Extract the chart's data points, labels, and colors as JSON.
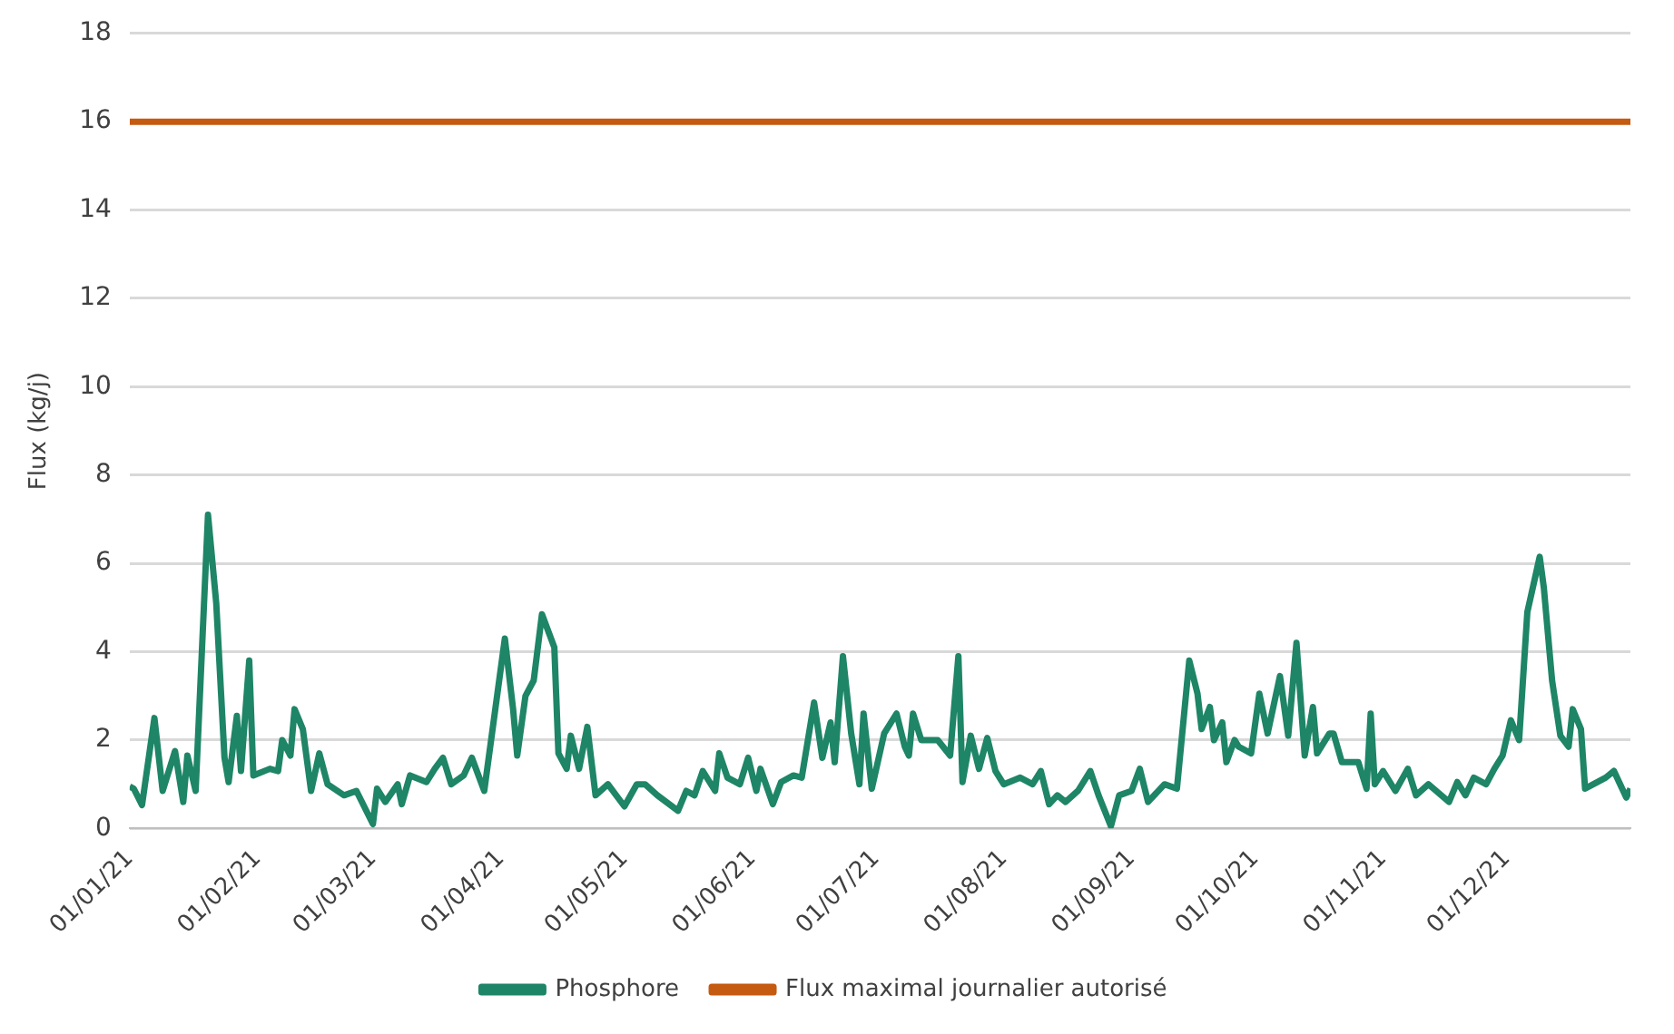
{
  "chart_data": {
    "type": "line",
    "ylabel": "Flux (kg/j)",
    "ylim": [
      0,
      18
    ],
    "yticks": [
      0,
      2,
      4,
      6,
      8,
      10,
      12,
      14,
      16,
      18
    ],
    "xlim": [
      "2021-01-01",
      "2021-12-31"
    ],
    "xticks": [
      {
        "value": "2021-01-01",
        "label": "01/01/21"
      },
      {
        "value": "2021-02-01",
        "label": "01/02/21"
      },
      {
        "value": "2021-03-01",
        "label": "01/03/21"
      },
      {
        "value": "2021-04-01",
        "label": "01/04/21"
      },
      {
        "value": "2021-05-01",
        "label": "01/05/21"
      },
      {
        "value": "2021-06-01",
        "label": "01/06/21"
      },
      {
        "value": "2021-07-01",
        "label": "01/07/21"
      },
      {
        "value": "2021-08-01",
        "label": "01/08/21"
      },
      {
        "value": "2021-09-01",
        "label": "01/09/21"
      },
      {
        "value": "2021-10-01",
        "label": "01/10/21"
      },
      {
        "value": "2021-11-01",
        "label": "01/11/21"
      },
      {
        "value": "2021-12-01",
        "label": "01/12/21"
      }
    ],
    "grid": "y",
    "legend": "bottom",
    "marker": "none",
    "line_style": "solid",
    "series": [
      {
        "name": "Phosphore",
        "color": "#1e8566",
        "x": [
          "2021-01-01",
          "2021-01-02",
          "2021-01-04",
          "2021-01-07",
          "2021-01-09",
          "2021-01-12",
          "2021-01-14",
          "2021-01-15",
          "2021-01-17",
          "2021-01-20",
          "2021-01-22",
          "2021-01-24",
          "2021-01-25",
          "2021-01-27",
          "2021-01-28",
          "2021-01-30",
          "2021-01-31",
          "2021-02-04",
          "2021-02-06",
          "2021-02-07",
          "2021-02-09",
          "2021-02-10",
          "2021-02-12",
          "2021-02-14",
          "2021-02-16",
          "2021-02-18",
          "2021-02-22",
          "2021-02-25",
          "2021-03-01",
          "2021-03-02",
          "2021-03-04",
          "2021-03-07",
          "2021-03-08",
          "2021-03-10",
          "2021-03-14",
          "2021-03-16",
          "2021-03-18",
          "2021-03-20",
          "2021-03-23",
          "2021-03-25",
          "2021-03-28",
          "2021-04-02",
          "2021-04-04",
          "2021-04-05",
          "2021-04-07",
          "2021-04-09",
          "2021-04-11",
          "2021-04-14",
          "2021-04-15",
          "2021-04-17",
          "2021-04-18",
          "2021-04-20",
          "2021-04-22",
          "2021-04-24",
          "2021-04-27",
          "2021-05-01",
          "2021-05-04",
          "2021-05-06",
          "2021-05-09",
          "2021-05-14",
          "2021-05-16",
          "2021-05-18",
          "2021-05-20",
          "2021-05-23",
          "2021-05-24",
          "2021-05-26",
          "2021-05-29",
          "2021-05-31",
          "2021-06-02",
          "2021-06-03",
          "2021-06-06",
          "2021-06-08",
          "2021-06-11",
          "2021-06-13",
          "2021-06-16",
          "2021-06-18",
          "2021-06-20",
          "2021-06-21",
          "2021-06-23",
          "2021-06-25",
          "2021-06-27",
          "2021-06-28",
          "2021-06-30",
          "2021-07-03",
          "2021-07-06",
          "2021-07-08",
          "2021-07-09",
          "2021-07-10",
          "2021-07-12",
          "2021-07-16",
          "2021-07-19",
          "2021-07-21",
          "2021-07-22",
          "2021-07-24",
          "2021-07-26",
          "2021-07-28",
          "2021-07-30",
          "2021-08-01",
          "2021-08-05",
          "2021-08-08",
          "2021-08-10",
          "2021-08-12",
          "2021-08-14",
          "2021-08-16",
          "2021-08-19",
          "2021-08-22",
          "2021-08-24",
          "2021-08-27",
          "2021-08-29",
          "2021-09-01",
          "2021-09-03",
          "2021-09-05",
          "2021-09-09",
          "2021-09-12",
          "2021-09-15",
          "2021-09-17",
          "2021-09-18",
          "2021-09-20",
          "2021-09-21",
          "2021-09-23",
          "2021-09-24",
          "2021-09-26",
          "2021-09-27",
          "2021-09-30",
          "2021-10-02",
          "2021-10-04",
          "2021-10-07",
          "2021-10-09",
          "2021-10-11",
          "2021-10-13",
          "2021-10-15",
          "2021-10-16",
          "2021-10-19",
          "2021-10-20",
          "2021-10-22",
          "2021-10-26",
          "2021-10-28",
          "2021-10-29",
          "2021-10-30",
          "2021-11-01",
          "2021-11-04",
          "2021-11-07",
          "2021-11-09",
          "2021-11-12",
          "2021-11-17",
          "2021-11-19",
          "2021-11-21",
          "2021-11-23",
          "2021-11-26",
          "2021-11-28",
          "2021-11-30",
          "2021-12-02",
          "2021-12-04",
          "2021-12-06",
          "2021-12-09",
          "2021-12-10",
          "2021-12-12",
          "2021-12-14",
          "2021-12-16",
          "2021-12-17",
          "2021-12-19",
          "2021-12-20",
          "2021-12-22",
          "2021-12-25",
          "2021-12-27",
          "2021-12-30",
          "2021-12-31"
        ],
        "values": [
          0.95,
          0.9,
          0.53,
          2.5,
          0.85,
          1.75,
          0.6,
          1.65,
          0.85,
          7.1,
          5.1,
          1.6,
          1.05,
          2.55,
          1.3,
          3.8,
          1.2,
          1.35,
          1.3,
          2.0,
          1.65,
          2.7,
          2.25,
          0.85,
          1.7,
          1.0,
          0.75,
          0.85,
          0.1,
          0.9,
          0.6,
          1.0,
          0.55,
          1.2,
          1.05,
          1.35,
          1.6,
          1.0,
          1.2,
          1.6,
          0.85,
          4.3,
          2.7,
          1.65,
          3.0,
          3.35,
          4.85,
          4.1,
          1.7,
          1.35,
          2.1,
          1.35,
          2.3,
          0.75,
          1.0,
          0.5,
          1.0,
          1.0,
          0.75,
          0.4,
          0.85,
          0.75,
          1.3,
          0.85,
          1.7,
          1.15,
          1.0,
          1.6,
          0.85,
          1.35,
          0.55,
          1.05,
          1.2,
          1.15,
          2.85,
          1.6,
          2.4,
          1.5,
          3.9,
          2.15,
          1.0,
          2.6,
          0.9,
          2.15,
          2.6,
          1.85,
          1.65,
          2.6,
          2.0,
          2.0,
          1.65,
          3.9,
          1.05,
          2.1,
          1.35,
          2.05,
          1.3,
          1.0,
          1.15,
          1.0,
          1.3,
          0.55,
          0.75,
          0.6,
          0.85,
          1.3,
          0.75,
          0.05,
          0.75,
          0.85,
          1.35,
          0.6,
          1.0,
          0.9,
          3.8,
          3.05,
          2.25,
          2.75,
          2.0,
          2.4,
          1.5,
          2.0,
          1.85,
          1.7,
          3.05,
          2.15,
          3.45,
          2.1,
          4.2,
          1.65,
          2.75,
          1.7,
          2.15,
          2.15,
          1.5,
          1.5,
          0.9,
          2.6,
          1.0,
          1.3,
          0.85,
          1.35,
          0.75,
          1.0,
          0.6,
          1.05,
          0.75,
          1.15,
          1.0,
          1.35,
          1.65,
          2.45,
          2.0,
          4.9,
          6.15,
          5.45,
          3.35,
          2.1,
          1.85,
          2.7,
          2.25,
          0.9,
          1.0,
          1.15,
          1.3,
          0.7,
          0.9
        ]
      },
      {
        "name": "Flux maximal journalier autorisé",
        "color": "#c55a11",
        "x": [
          "2021-01-01",
          "2021-12-31"
        ],
        "values": [
          16,
          16
        ]
      }
    ]
  }
}
